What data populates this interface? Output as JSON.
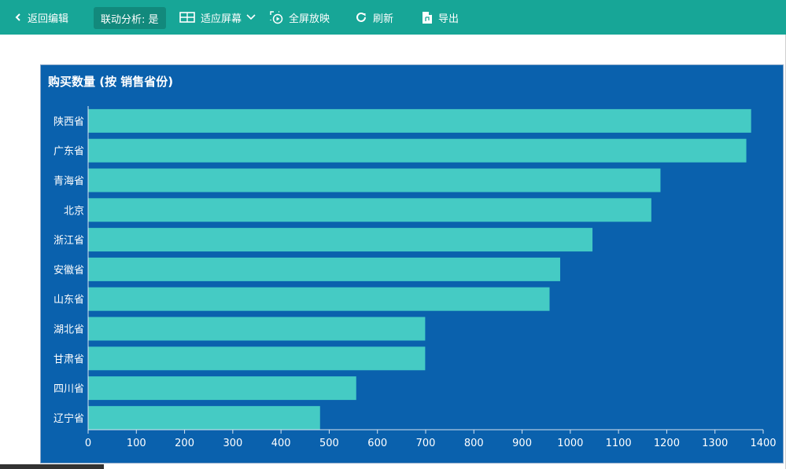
{
  "toolbar": {
    "back_label": "返回编辑",
    "linkage_label": "联动分析: 是",
    "fit_label": "适应屏幕",
    "fullscreen_label": "全屏放映",
    "refresh_label": "刷新",
    "export_label": "导出"
  },
  "colors": {
    "toolbar_bg": "#17a697",
    "chart_bg": "#0a61ad",
    "bar_color": "#45cbc4"
  },
  "chart_data": {
    "type": "bar",
    "orientation": "horizontal",
    "title": "购买数量 (按 销售省份)",
    "categories": [
      "陕西省",
      "广东省",
      "青海省",
      "北京",
      "浙江省",
      "安徽省",
      "山东省",
      "湖北省",
      "甘肃省",
      "四川省",
      "辽宁省"
    ],
    "values": [
      1375,
      1365,
      1187,
      1168,
      1046,
      979,
      957,
      699,
      699,
      556,
      481
    ],
    "xlim": [
      0,
      1400
    ],
    "xticks": [
      0,
      100,
      200,
      300,
      400,
      500,
      600,
      700,
      800,
      900,
      1000,
      1100,
      1200,
      1300,
      1400
    ],
    "grid": false,
    "legend": "none"
  }
}
